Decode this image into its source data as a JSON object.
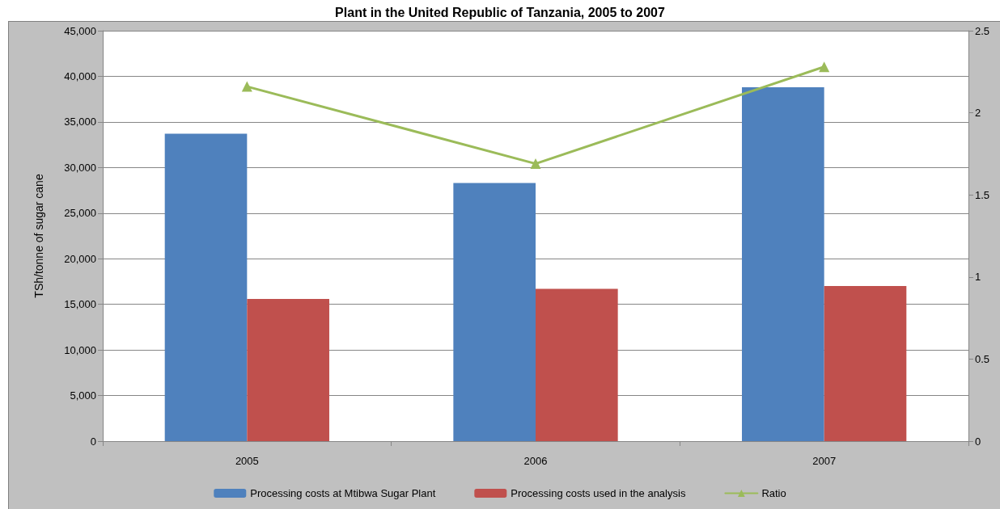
{
  "chart_data": {
    "type": "bar",
    "title": "Plant in the United Republic of Tanzania, 2005 to 2007",
    "ylabel": "TSh/tonne of sugar cane",
    "categories": [
      "2005",
      "2006",
      "2007"
    ],
    "series": [
      {
        "name": "Processing costs at Mtibwa Sugar Plant",
        "color": "#4f81bd",
        "values": [
          33700,
          28300,
          38800
        ]
      },
      {
        "name": "Processing costs used in the analysis",
        "color": "#c0504d",
        "values": [
          15600,
          16700,
          17000
        ]
      },
      {
        "name": "Ratio",
        "type": "line",
        "axis": "y2",
        "color": "#9bbb59",
        "values": [
          2.16,
          1.69,
          2.28
        ]
      }
    ],
    "ylim": [
      0,
      45000
    ],
    "yticks": [
      0,
      {
        "value": 5000,
        "label": "5,000"
      },
      {
        "value": 10000,
        "label": "10,000"
      },
      {
        "value": 15000,
        "label": "15,000"
      },
      {
        "value": 20000,
        "label": "20,000"
      },
      {
        "value": 25000,
        "label": "25,000"
      },
      {
        "value": 30000,
        "label": "30,000"
      },
      {
        "value": 35000,
        "label": "35,000"
      },
      {
        "value": 40000,
        "label": "40,000"
      },
      {
        "value": 45000,
        "label": "45,000"
      }
    ],
    "y2lim": [
      0,
      2.5
    ],
    "y2ticks": [
      0,
      0.5,
      1,
      1.5,
      2,
      2.5
    ],
    "grid": "y",
    "legend": "bottom",
    "marker": "triangle"
  }
}
